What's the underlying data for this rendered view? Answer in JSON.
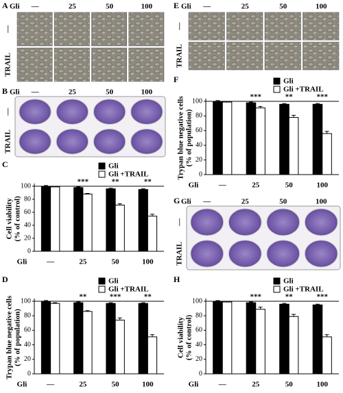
{
  "image_panels": [
    {
      "label": "A",
      "dose_label": "Gli",
      "doses": [
        "—",
        "25",
        "50",
        "100"
      ],
      "rows": [
        "—",
        "TRAIL"
      ]
    },
    {
      "label": "B",
      "dose_label": "Gli",
      "doses": [
        "—",
        "25",
        "50",
        "100"
      ],
      "rows": [
        "—",
        "TRAIL"
      ]
    },
    {
      "label": "E",
      "dose_label": "Gli",
      "doses": [
        "—",
        "25",
        "50",
        "100"
      ],
      "rows": [
        "—",
        "TRAIL"
      ]
    },
    {
      "label": "G",
      "dose_label": "Gli",
      "doses": [
        "—",
        "25",
        "50",
        "100"
      ],
      "rows": [
        "—",
        "TRAIL"
      ]
    }
  ],
  "chart_data": [
    {
      "type": "bar",
      "panel": "C",
      "ylabel": [
        "Cell viability",
        "(% of control)"
      ],
      "xlabel": "Gli",
      "categories": [
        "—",
        "25",
        "50",
        "100"
      ],
      "series": [
        {
          "name": "Gli",
          "color": "#000000",
          "values": [
            100,
            98,
            96,
            95
          ],
          "errors": [
            1,
            1,
            1,
            1
          ]
        },
        {
          "name": "Gli +TRAIL",
          "color": "#ffffff",
          "values": [
            99,
            88,
            71,
            54
          ],
          "errors": [
            1,
            1,
            2,
            3
          ]
        }
      ],
      "significance": [
        null,
        "***",
        "**",
        "**"
      ],
      "legend": "upper right",
      "ylim": [
        0,
        100
      ],
      "yticks": [
        0,
        20,
        40,
        60,
        80,
        100
      ]
    },
    {
      "type": "bar",
      "panel": "D",
      "ylabel": [
        "Trypan blue negative cells",
        "(% of population)"
      ],
      "xlabel": "Gli",
      "categories": [
        "—",
        "25",
        "50",
        "100"
      ],
      "series": [
        {
          "name": "Gli",
          "color": "#000000",
          "values": [
            100,
            98,
            97,
            97
          ],
          "errors": [
            1,
            1,
            1,
            1
          ]
        },
        {
          "name": "Gli +TRAIL",
          "color": "#ffffff",
          "values": [
            97,
            86,
            74,
            51
          ],
          "errors": [
            1,
            1,
            3,
            3
          ]
        }
      ],
      "significance": [
        null,
        "**",
        "***",
        "**"
      ],
      "legend": "upper right",
      "ylim": [
        0,
        100
      ],
      "yticks": [
        0,
        20,
        40,
        60,
        80,
        100
      ]
    },
    {
      "type": "bar",
      "panel": "F",
      "ylabel": [
        "Trypan blue negative cells",
        "(% of population)"
      ],
      "xlabel": "Gli",
      "categories": [
        "—",
        "25",
        "50",
        "100"
      ],
      "series": [
        {
          "name": "Gli",
          "color": "#000000",
          "values": [
            100,
            98,
            96,
            96
          ],
          "errors": [
            1,
            1,
            1,
            1
          ]
        },
        {
          "name": "Gli +TRAIL",
          "color": "#ffffff",
          "values": [
            99,
            91,
            78,
            56
          ],
          "errors": [
            1,
            2,
            3,
            3
          ]
        }
      ],
      "significance": [
        null,
        "***",
        "**",
        "***"
      ],
      "legend": "upper right",
      "ylim": [
        0,
        100
      ],
      "yticks": [
        0,
        20,
        40,
        60,
        80,
        100
      ]
    },
    {
      "type": "bar",
      "panel": "H",
      "ylabel": [
        "Cell viability",
        "(% of control)"
      ],
      "xlabel": "Gli",
      "categories": [
        "—",
        "25",
        "50",
        "100"
      ],
      "series": [
        {
          "name": "Gli",
          "color": "#000000",
          "values": [
            100,
            98,
            96,
            95
          ],
          "errors": [
            1,
            1,
            1,
            1
          ]
        },
        {
          "name": "Gli +TRAIL",
          "color": "#ffffff",
          "values": [
            99,
            89,
            79,
            51
          ],
          "errors": [
            1,
            3,
            3,
            3
          ]
        }
      ],
      "significance": [
        null,
        "***",
        "**",
        "***"
      ],
      "legend": "upper right",
      "ylim": [
        0,
        100
      ],
      "yticks": [
        0,
        20,
        40,
        60,
        80,
        100
      ]
    }
  ]
}
